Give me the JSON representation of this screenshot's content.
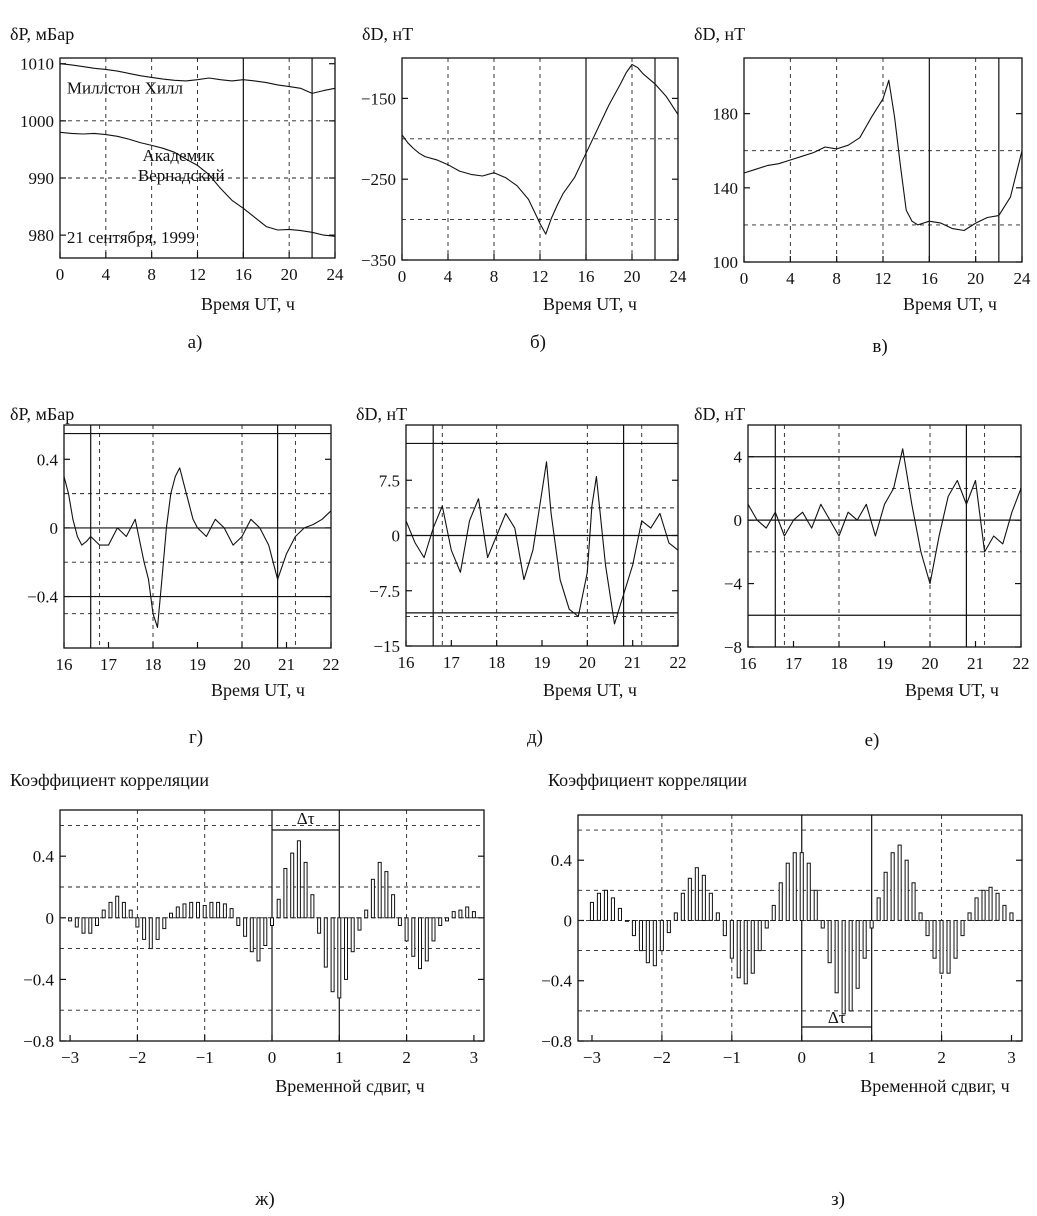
{
  "chart_data": [
    {
      "id": "a",
      "type": "line",
      "panel_label": "а)",
      "ylabel": "δP, мБар",
      "xlabel": "Время UT, ч",
      "xlim": [
        0,
        24
      ],
      "ylim": [
        976,
        1011
      ],
      "xticks": [
        "0",
        "4",
        "8",
        "12",
        "16",
        "20",
        "24"
      ],
      "yticks": [
        [
          "1010",
          1010
        ],
        [
          "1000",
          1000
        ],
        [
          "990",
          990
        ],
        [
          "980",
          980
        ]
      ],
      "vgrid_dashed": [
        4,
        8,
        12,
        20
      ],
      "vsolid": [
        16,
        22
      ],
      "hgrid_dashed": [
        1000,
        990
      ],
      "annotations": [
        {
          "text": "Миллстон Хилл",
          "x": 0.6,
          "y": 1004.8
        },
        {
          "text": "Академик",
          "x": 7.2,
          "y": 993.0
        },
        {
          "text": "Вернадский",
          "x": 6.8,
          "y": 989.5
        },
        {
          "text": "21 сентября, 1999",
          "x": 0.6,
          "y": 978.6
        }
      ],
      "series": [
        {
          "x": [
            0,
            1,
            2,
            3,
            4,
            5,
            6,
            7,
            8,
            9,
            10,
            11,
            12,
            13,
            14,
            15,
            16,
            17,
            18,
            19,
            20,
            21,
            22,
            23,
            24
          ],
          "y": [
            1010,
            1009.8,
            1009.5,
            1009.2,
            1009,
            1008.7,
            1008.3,
            1007.9,
            1007.6,
            1007.3,
            1007.1,
            1007,
            1007.2,
            1007.5,
            1007.2,
            1007,
            1007.2,
            1007,
            1006.7,
            1006.3,
            1006,
            1005.7,
            1004.8,
            1005.3,
            1005.7
          ]
        },
        {
          "x": [
            0,
            1,
            2,
            3,
            4,
            5,
            6,
            7,
            8,
            9,
            10,
            11,
            12,
            13,
            14,
            15,
            16,
            17,
            18,
            19,
            20,
            21,
            22,
            23,
            24
          ],
          "y": [
            998,
            997.8,
            997.7,
            997.8,
            997.6,
            997.3,
            996.8,
            996.2,
            995.7,
            995.2,
            994.5,
            993.3,
            992.2,
            990.6,
            988.2,
            986.1,
            984.7,
            983.1,
            981.5,
            980.9,
            981,
            980.8,
            980.5,
            980,
            979.8
          ]
        }
      ]
    },
    {
      "id": "b",
      "type": "line",
      "panel_label": "б)",
      "ylabel": "δD, нТ",
      "xlabel": "Время UT, ч",
      "xlim": [
        0,
        24
      ],
      "ylim": [
        -350,
        -100
      ],
      "xticks": [
        "0",
        "4",
        "8",
        "12",
        "16",
        "20",
        "24"
      ],
      "yticks": [
        [
          "−150",
          -150
        ],
        [
          "−250",
          -250
        ],
        [
          "−350",
          -350
        ]
      ],
      "vgrid_dashed": [
        4,
        8,
        12,
        20
      ],
      "vsolid": [
        16,
        22
      ],
      "hgrid_dashed": [
        -200,
        -300
      ],
      "series": [
        {
          "x": [
            0,
            0.5,
            1,
            1.5,
            2,
            3,
            4,
            5,
            6,
            7,
            8,
            9,
            10,
            11,
            11.5,
            12,
            12.5,
            13,
            13.5,
            14,
            15,
            16,
            17,
            18,
            19,
            19.5,
            20,
            20.5,
            21,
            22,
            23,
            24
          ],
          "y": [
            -195,
            -205,
            -212,
            -218,
            -222,
            -226,
            -232,
            -240,
            -244,
            -246,
            -242,
            -248,
            -258,
            -275,
            -290,
            -305,
            -318,
            -298,
            -282,
            -268,
            -248,
            -218,
            -188,
            -158,
            -132,
            -118,
            -108,
            -112,
            -120,
            -132,
            -148,
            -170
          ]
        }
      ]
    },
    {
      "id": "v",
      "type": "line",
      "panel_label": "в)",
      "ylabel": "δD, нТ",
      "xlabel": "Время UT, ч",
      "xlim": [
        0,
        24
      ],
      "ylim": [
        100,
        210
      ],
      "xticks": [
        "0",
        "4",
        "8",
        "12",
        "16",
        "20",
        "24"
      ],
      "yticks": [
        [
          "180",
          180
        ],
        [
          "140",
          140
        ],
        [
          "100",
          100
        ]
      ],
      "vgrid_dashed": [
        4,
        8,
        12,
        20
      ],
      "vsolid": [
        16,
        22
      ],
      "hgrid_dashed": [
        160,
        120
      ],
      "series": [
        {
          "x": [
            0,
            1,
            2,
            3,
            4,
            5,
            6,
            7,
            8,
            9,
            10,
            11,
            12,
            12.5,
            13,
            13.5,
            14,
            14.5,
            15,
            16,
            17,
            18,
            19,
            20,
            21,
            22,
            23,
            24
          ],
          "y": [
            148,
            150,
            152,
            153,
            155,
            157,
            159,
            162,
            161,
            163,
            167,
            178,
            188,
            198,
            178,
            152,
            128,
            122,
            120,
            122,
            121,
            118,
            117,
            121,
            124,
            125,
            135,
            160
          ]
        }
      ]
    },
    {
      "id": "g",
      "type": "line",
      "panel_label": "г)",
      "ylabel": "δP, мБар",
      "xlabel": "Время UT, ч",
      "xlim": [
        16,
        22
      ],
      "ylim": [
        -0.7,
        0.6
      ],
      "xticks": [
        "16",
        "17",
        "18",
        "19",
        "20",
        "21",
        "22"
      ],
      "yticks": [
        [
          "0.4",
          0.4
        ],
        [
          "0",
          0
        ],
        [
          "−0.4",
          -0.4
        ]
      ],
      "vgrid_dashed": [
        16.8,
        18,
        20,
        21.2
      ],
      "vsolid": [
        16.6,
        20.8
      ],
      "hgrid_dashed": [
        0.2,
        -0.2,
        -0.5
      ],
      "hsolid": [
        0.55,
        0,
        -0.4
      ],
      "series": [
        {
          "x": [
            16,
            16.1,
            16.2,
            16.3,
            16.4,
            16.5,
            16.6,
            16.8,
            17,
            17.2,
            17.4,
            17.6,
            17.8,
            17.9,
            18,
            18.1,
            18.2,
            18.3,
            18.4,
            18.5,
            18.6,
            18.7,
            18.8,
            18.9,
            19,
            19.2,
            19.4,
            19.6,
            19.8,
            20,
            20.2,
            20.4,
            20.6,
            20.8,
            21,
            21.2,
            21.4,
            21.6,
            21.8,
            22
          ],
          "y": [
            0.3,
            0.2,
            0.05,
            -0.05,
            -0.1,
            -0.08,
            -0.05,
            -0.1,
            -0.1,
            0.0,
            -0.05,
            0.05,
            -0.2,
            -0.3,
            -0.5,
            -0.58,
            -0.3,
            0.0,
            0.2,
            0.3,
            0.35,
            0.25,
            0.15,
            0.05,
            0.0,
            -0.05,
            0.05,
            0.0,
            -0.1,
            -0.05,
            0.05,
            0.0,
            -0.1,
            -0.3,
            -0.15,
            -0.05,
            0.0,
            0.02,
            0.05,
            0.1
          ]
        }
      ]
    },
    {
      "id": "d",
      "type": "line",
      "panel_label": "д)",
      "ylabel": "δD, нТ",
      "xlabel": "Время UT, ч",
      "xlim": [
        16,
        22
      ],
      "ylim": [
        -15,
        15
      ],
      "xticks": [
        "16",
        "17",
        "18",
        "19",
        "20",
        "21",
        "22"
      ],
      "yticks": [
        [
          "7.5",
          7.5
        ],
        [
          "0",
          0
        ],
        [
          "−7.5",
          -7.5
        ],
        [
          "−15",
          -15
        ]
      ],
      "vgrid_dashed": [
        16.8,
        18,
        20,
        21.2
      ],
      "vsolid": [
        16.6,
        20.8
      ],
      "hgrid_dashed": [
        3.75,
        -3.75,
        -11
      ],
      "hsolid": [
        12.5,
        0,
        -10.5
      ],
      "series": [
        {
          "x": [
            16,
            16.2,
            16.4,
            16.6,
            16.8,
            17,
            17.2,
            17.4,
            17.6,
            17.8,
            18,
            18.2,
            18.4,
            18.6,
            18.8,
            19,
            19.1,
            19.2,
            19.4,
            19.6,
            19.8,
            20,
            20.1,
            20.2,
            20.4,
            20.6,
            20.8,
            21,
            21.2,
            21.4,
            21.6,
            21.8,
            22
          ],
          "y": [
            2,
            -1,
            -3,
            1,
            4,
            -2,
            -5,
            2,
            5,
            -3,
            0,
            3,
            1,
            -6,
            -2,
            6,
            10,
            3,
            -6,
            -10,
            -11,
            -5,
            4,
            8,
            -4,
            -12,
            -8,
            -4,
            2,
            1,
            3,
            -1,
            -2
          ]
        }
      ]
    },
    {
      "id": "e",
      "type": "line",
      "panel_label": "е)",
      "ylabel": "δD, нТ",
      "xlabel": "Время UT, ч",
      "xlim": [
        16,
        22
      ],
      "ylim": [
        -8,
        6
      ],
      "xticks": [
        "16",
        "17",
        "18",
        "19",
        "20",
        "21",
        "22"
      ],
      "yticks": [
        [
          "4",
          4
        ],
        [
          "0",
          0
        ],
        [
          "−4",
          -4
        ],
        [
          "−8",
          -8
        ]
      ],
      "vgrid_dashed": [
        16.8,
        18,
        20,
        21.2
      ],
      "vsolid": [
        16.6,
        20.8
      ],
      "hgrid_dashed": [
        6,
        2,
        -2
      ],
      "hsolid": [
        4,
        0,
        -6
      ],
      "series": [
        {
          "x": [
            16,
            16.2,
            16.4,
            16.6,
            16.8,
            17,
            17.2,
            17.4,
            17.6,
            17.8,
            18,
            18.2,
            18.4,
            18.6,
            18.8,
            19,
            19.2,
            19.4,
            19.6,
            19.8,
            20,
            20.2,
            20.4,
            20.6,
            20.8,
            21,
            21.2,
            21.4,
            21.6,
            21.8,
            22
          ],
          "y": [
            1,
            0,
            -0.5,
            0.5,
            -1,
            0,
            0.5,
            -0.5,
            1,
            0,
            -1,
            0.5,
            0,
            1,
            -1,
            1,
            2,
            4.5,
            1,
            -2,
            -4,
            -1,
            1.5,
            2.5,
            1,
            2.5,
            -2,
            -1,
            -1.5,
            0.5,
            2
          ]
        }
      ]
    },
    {
      "id": "zh",
      "type": "bar",
      "panel_label": "ж)",
      "ylabel": "Коэффициент корреляции",
      "xlabel": "Временной сдвиг, ч",
      "xlim": [
        -3.15,
        3.15
      ],
      "ylim": [
        -0.8,
        0.7
      ],
      "xticks": [
        [
          "−3",
          -3
        ],
        [
          "−2",
          -2
        ],
        [
          "−1",
          -1
        ],
        [
          "0",
          0
        ],
        [
          "1",
          1
        ],
        [
          "2",
          2
        ],
        [
          "3",
          3
        ]
      ],
      "yticks": [
        [
          "0.4",
          0.4
        ],
        [
          "0",
          0
        ],
        [
          "−0.4",
          -0.4
        ],
        [
          "−0.8",
          -0.8
        ]
      ],
      "vgrid_dashed": [
        -2,
        -1,
        2
      ],
      "hgrid_dashed": [
        0.6,
        0.2,
        -0.2,
        -0.6
      ],
      "vsolid": [
        0,
        1
      ],
      "delta_label": "Δτ",
      "series": [
        {
          "x": [
            -3.0,
            -2.9,
            -2.8,
            -2.7,
            -2.6,
            -2.5,
            -2.4,
            -2.3,
            -2.2,
            -2.1,
            -2.0,
            -1.9,
            -1.8,
            -1.7,
            -1.6,
            -1.5,
            -1.4,
            -1.3,
            -1.2,
            -1.1,
            -1.0,
            -0.9,
            -0.8,
            -0.7,
            -0.6,
            -0.5,
            -0.4,
            -0.3,
            -0.2,
            -0.1,
            0.0,
            0.1,
            0.2,
            0.3,
            0.4,
            0.5,
            0.6,
            0.7,
            0.8,
            0.9,
            1.0,
            1.1,
            1.2,
            1.3,
            1.4,
            1.5,
            1.6,
            1.7,
            1.8,
            1.9,
            2.0,
            2.1,
            2.2,
            2.3,
            2.4,
            2.5,
            2.6,
            2.7,
            2.8,
            2.9,
            3.0
          ],
          "values": [
            -0.02,
            -0.06,
            -0.1,
            -0.1,
            -0.05,
            0.05,
            0.1,
            0.14,
            0.1,
            0.05,
            -0.06,
            -0.14,
            -0.2,
            -0.14,
            -0.07,
            0.03,
            0.07,
            0.09,
            0.1,
            0.1,
            0.08,
            0.1,
            0.1,
            0.09,
            0.06,
            -0.05,
            -0.12,
            -0.22,
            -0.28,
            -0.18,
            -0.05,
            0.12,
            0.32,
            0.42,
            0.5,
            0.36,
            0.15,
            -0.1,
            -0.32,
            -0.48,
            -0.52,
            -0.4,
            -0.22,
            -0.08,
            0.05,
            0.25,
            0.36,
            0.3,
            0.15,
            -0.05,
            -0.15,
            -0.25,
            -0.33,
            -0.28,
            -0.15,
            -0.05,
            -0.02,
            0.04,
            0.05,
            0.07,
            0.04
          ]
        }
      ]
    },
    {
      "id": "z",
      "type": "bar",
      "panel_label": "з)",
      "ylabel": "Коэффициент корреляции",
      "xlabel": "Временной сдвиг, ч",
      "xlim": [
        -3.2,
        3.15
      ],
      "ylim": [
        -0.8,
        0.7
      ],
      "xticks": [
        [
          "−3",
          -3
        ],
        [
          "−2",
          -2
        ],
        [
          "−1",
          -1
        ],
        [
          "0",
          0
        ],
        [
          "1",
          1
        ],
        [
          "2",
          2
        ],
        [
          "3",
          3
        ]
      ],
      "yticks": [
        [
          "0.4",
          0.4
        ],
        [
          "0",
          0
        ],
        [
          "−0.4",
          -0.4
        ],
        [
          "−0.8",
          -0.8
        ]
      ],
      "vgrid_dashed": [
        -2,
        -1,
        2
      ],
      "hgrid_dashed": [
        0.6,
        0.2,
        -0.2,
        -0.6
      ],
      "vsolid": [
        0,
        1
      ],
      "delta_label": "Δτ",
      "series": [
        {
          "x": [
            -3.0,
            -2.9,
            -2.8,
            -2.7,
            -2.6,
            -2.5,
            -2.4,
            -2.3,
            -2.2,
            -2.1,
            -2.0,
            -1.9,
            -1.8,
            -1.7,
            -1.6,
            -1.5,
            -1.4,
            -1.3,
            -1.2,
            -1.1,
            -1.0,
            -0.9,
            -0.8,
            -0.7,
            -0.6,
            -0.5,
            -0.4,
            -0.3,
            -0.2,
            -0.1,
            0.0,
            0.1,
            0.2,
            0.3,
            0.4,
            0.5,
            0.6,
            0.7,
            0.8,
            0.9,
            1.0,
            1.1,
            1.2,
            1.3,
            1.4,
            1.5,
            1.6,
            1.7,
            1.8,
            1.9,
            2.0,
            2.1,
            2.2,
            2.3,
            2.4,
            2.5,
            2.6,
            2.7,
            2.8,
            2.9,
            3.0
          ],
          "values": [
            0.12,
            0.18,
            0.2,
            0.15,
            0.08,
            0.0,
            -0.1,
            -0.2,
            -0.28,
            -0.3,
            -0.2,
            -0.08,
            0.05,
            0.18,
            0.28,
            0.35,
            0.3,
            0.18,
            0.05,
            -0.1,
            -0.25,
            -0.38,
            -0.42,
            -0.35,
            -0.2,
            -0.05,
            0.1,
            0.25,
            0.38,
            0.45,
            0.45,
            0.38,
            0.2,
            -0.05,
            -0.28,
            -0.48,
            -0.62,
            -0.6,
            -0.45,
            -0.25,
            -0.05,
            0.15,
            0.32,
            0.45,
            0.5,
            0.4,
            0.25,
            0.05,
            -0.1,
            -0.25,
            -0.35,
            -0.35,
            -0.25,
            -0.1,
            0.05,
            0.15,
            0.2,
            0.22,
            0.18,
            0.1,
            0.05
          ]
        }
      ]
    }
  ]
}
